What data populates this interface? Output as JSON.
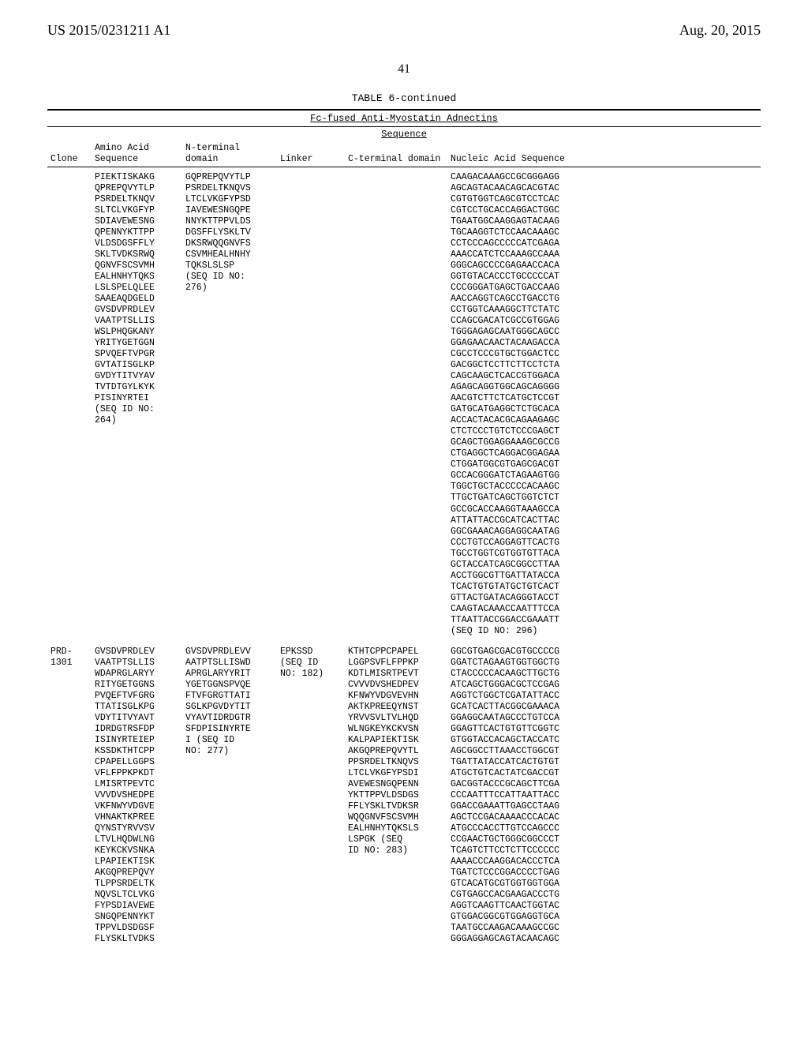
{
  "header": {
    "left": "US 2015/0231211 A1",
    "right": "Aug. 20, 2015"
  },
  "page_number": "41",
  "table": {
    "caption": "TABLE 6-continued",
    "subtitle": "Fc-fused Anti-Myostatin Adnectins",
    "sequence_label": "Sequence",
    "columns": {
      "clone": "Clone",
      "amino_acid": "Amino Acid\nSequence",
      "n_terminal": "N-terminal\ndomain",
      "linker": "Linker",
      "c_terminal": "C-terminal\ndomain",
      "nucleic": "Nucleic Acid\nSequence"
    },
    "rows": [
      {
        "clone": "",
        "amino_acid": "PIEKTISKAKG\nQPREPQVYTLP\nPSRDELTKNQV\nSLTCLVKGFYP\nSDIAVEWESNG\nQPENNYKTTPP\nVLDSDGSFFLY\nSKLTVDKSRWQ\nQGNVFSCSVMH\nEALHNHYTQKS\nLSLSPELQLEE\nSAAEAQDGELD\nGVSDVPRDLEV\nVAATPTSLLIS\nWSLPHQGKANY\nYRITYGETGGN\nSPVQEFTVPGR\nGVTATISGLKP\nGVDYTITVYAV\nTVTDTGYLKYK\nPISINYRTEI\n(SEQ ID NO:\n264)",
        "n_terminal": "GQPREPQVYTLP\nPSRDELTKNQVS\nLTCLVKGFYPSD\nIAVEWESNGQPE\nNNYKTTPPVLDS\nDGSFFLYSKLTV\nDKSRWQQGNVFS\nCSVMHEALHNHY\nTQKSLSLSP\n(SEQ ID NO:\n276)",
        "linker": "",
        "c_terminal": "",
        "nucleic": "CAAGACAAAGCCGCGGGAGG\nAGCAGTACAACAGCACGTAC\nCGTGTGGTCAGCGTCCTCAC\nCGTCCTGCACCAGGACTGGC\nTGAATGGCAAGGAGTACAAG\nTGCAAGGTCTCCAACAAAGC\nCCTCCCAGCCCCCATCGAGA\nAAACCATCTCCAAAGCCAAA\nGGGCAGCCCCGAGAACCACA\nGGTGTACACCCTGCCCCCAT\nCCCGGGATGAGCTGACCAAG\nAACCAGGTCAGCCTGACCTG\nCCTGGTCAAAGGCTTCTATC\nCCAGCGACATCGCCGTGGAG\nTGGGAGAGCAATGGGCAGCC\nGGAGAACAACTACAAGACCA\nCGCCTCCCGTGCTGGACTCC\nGACGGCTCCTTCTTCCTCTA\nCAGCAAGCTCACCGTGGACA\nAGAGCAGGTGGCAGCAGGGG\nAACGTCTTCTCATGCTCCGT\nGATGCATGAGGCTCTGCACA\nACCACTACACGCAGAAGAGC\nCTCTCCCTGTCTCCCGAGCT\nGCAGCTGGAGGAAAGCGCCG\nCTGAGGCTCAGGACGGAGAA\nCTGGATGGCGTGAGCGACGT\nGCCACGGGATCTAGAAGTGG\nTGGCTGCTACCCCCACAAGC\nTTGCTGATCAGCTGGTCTCT\nGCCGCACCAAGGTAAAGCCA\nATTATTACCGCATCACTTAC\nGGCGAAACAGGAGGCAATAG\nCCCTGTCCAGGAGTTCACTG\nTGCCTGGTCGTGGTGTTACA\nGCTACCATCAGCGGCCTTAA\nACCTGGCGTTGATTATACCA\nTCACTGTGTATGCTGTCACT\nGTTACTGATACAGGGTACCT\nCAAGTACAAACCAATTTCCA\nTTAATTACCGGACCGAAATT\n(SEQ ID NO: 296)"
      },
      {
        "clone": "PRD-\n1301",
        "amino_acid": "GVSDVPRDLEV\nVAATPTSLLIS\nWDAPRGLARYY\nRITYGETGGNS\nPVQEFTVFGRG\nTTATISGLKPG\nVDYTITVYAVT\nIDRDGTRSFDP\nISINYRTEIEP\nKSSDKTHTCPP\nCPAPELLGGPS\nVFLFPPKPKDT\nLMISRTPEVTC\nVVVDVSHEDPE\nVKFNWYVDGVE\nVHNAKTKPREE\nQYNSTYRVVSV\nLTVLHQDWLNG\nKEYKCKVSNKA\nLPAPIEKTISK\nAKGQPREPQVY\nTLPPSRDELTK\nNQVSLTCLVKG\nFYPSDIAVEWE\nSNGQPENNYKT\nTPPVLDSDGSF\nFLYSKLTVDKS",
        "n_terminal": "GVSDVPRDLEVV\nAATPTSLLISWD\nAPRGLARYYRIT\nYGETGGNSPVQE\nFTVFGRGTTATI\nSGLKPGVDYTIT\nVYAVTIDRDGTR\nSFDPISINYRTE\nI (SEQ ID\nNO: 277)",
        "linker": "EPKSSD\n(SEQ ID\nNO: 182)",
        "c_terminal": "KTHTCPPCPAPEL\nLGGPSVFLFPPKP\nKDTLMISRTPEVT\nCVVVDVSHEDPEV\nKFNWYVDGVEVHN\nAKTKPREEQYNST\nYRVVSVLTVLHQD\nWLNGKEYKCKVSN\nKALPAPIEKTISK\nAKGQPREPQVYTL\nPPSRDELTKNQVS\nLTCLVKGFYPSDI\nAVEWESNGQPENN\nYKTTPPVLDSDGS\nFFLYSKLTVDKSR\nWQQGNVFSCSVMH\nEALHNHYTQKSLS\nLSPGK (SEQ\nID NO: 283)",
        "nucleic": "GGCGTGAGCGACGTGCCCCG\nGGATCTAGAAGTGGTGGCTG\nCTACCCCCACAAGCTTGCTG\nATCAGCTGGGACGCTCCGAG\nAGGTCTGGCTCGATATTACC\nGCATCACTTACGGCGAAACA\nGGAGGCAATAGCCCTGTCCA\nGGAGTTCACTGTGTTCGGTC\nGTGGTACCACAGCTACCATC\nAGCGGCCTTAAACCTGGCGT\nTGATTATACCATCACTGTGT\nATGCTGTCACTATCGACCGT\nGACGGTACCCGCAGCTTCGA\nCCCAATTTCCATTAATTACC\nGGACCGAAATTGAGCCTAAG\nAGCTCCGACAAAACCCACAC\nATGCCCACCTTGTCCAGCCC\nCCGAACTGCTGGGCGGCCCT\nTCAGTCTTCCTCTTCCCCCC\nAAAACCCAAGGACACCCTCA\nTGATCTCCCGGACCCCTGAG\nGTCACATGCGTGGTGGTGGA\nCGTGAGCCACGAAGACCCTG\nAGGTCAAGTTCAACTGGTAC\nGTGGACGGCGTGGAGGTGCA\nTAATGCCAAGACAAAGCCGC\nGGGAGGAGCAGTACAACAGC"
      }
    ]
  }
}
